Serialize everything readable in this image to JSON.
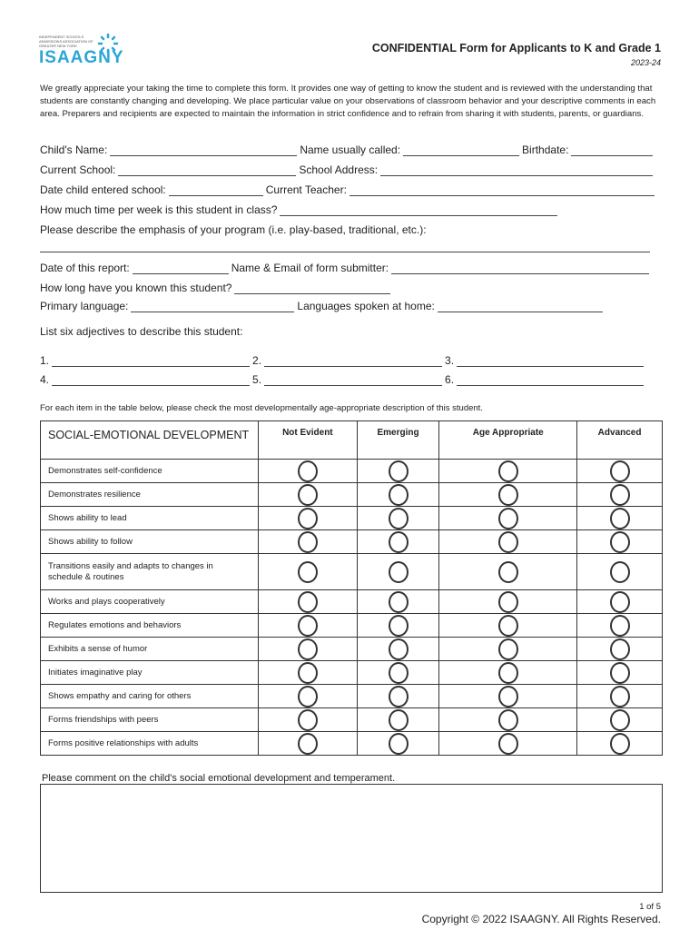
{
  "logo": {
    "org_text": "INDEPENDENT SCHOOLS ADMISSIONS ASSOCIATION OF GREATER NEW YORK",
    "word": "ISAAGNY",
    "color": "#2aa6d6"
  },
  "header": {
    "title": "CONFIDENTIAL Form for Applicants to K and Grade 1",
    "year": "2023-24"
  },
  "intro": "We greatly appreciate your taking the time to complete this form. It provides one way of getting to know the student and is reviewed with the understanding that students are constantly changing and developing. We place particular value on your observations of classroom behavior and your descriptive comments in each area. Preparers and recipients are expected to maintain the information in strict confidence and to refrain from sharing it with students, parents, or guardians.",
  "fields": {
    "childs_name": "Child's Name:",
    "name_called": "Name usually called:",
    "birthdate": "Birthdate:",
    "current_school": "Current School:",
    "school_address": "School Address:",
    "date_entered": "Date child entered school:",
    "current_teacher": "Current Teacher:",
    "time_per_week": "How much time per week is this student in class?",
    "program_emphasis": "Please describe the emphasis of your program (i.e. play-based, traditional, etc.):",
    "date_report": "Date of this report:",
    "submitter": "Name & Email of form submitter:",
    "known_how_long": "How long have you known this student?",
    "primary_language": "Primary language:",
    "languages_home": "Languages spoken at home:",
    "adjectives": "List six adjectives to describe this student:",
    "adj_nums": [
      "1.",
      "2.",
      "3.",
      "4.",
      "5.",
      "6."
    ]
  },
  "table": {
    "instruction": "For each item in the table below, please check the most developmentally age-appropriate description of this student.",
    "section": "SOCIAL-EMOTIONAL DEVELOPMENT",
    "columns": [
      "Not Evident",
      "Emerging",
      "Age Appropriate",
      "Advanced"
    ],
    "items": [
      "Demonstrates self-confidence",
      "Demonstrates resilience",
      "Shows ability to lead",
      "Shows ability to follow",
      "Transitions easily and adapts to changes in schedule & routines",
      "Works and plays cooperatively",
      "Regulates emotions and behaviors",
      "Exhibits a sense of humor",
      "Initiates imaginative play",
      "Shows empathy and caring for others",
      "Forms friendships with peers",
      "Forms positive relationships with adults"
    ]
  },
  "comment": {
    "label": "Please comment on the child's social emotional development and temperament.",
    "value": ""
  },
  "footer": {
    "page": "1 of 5",
    "copyright": "Copyright © 2022 ISAAGNY. All Rights Reserved."
  }
}
